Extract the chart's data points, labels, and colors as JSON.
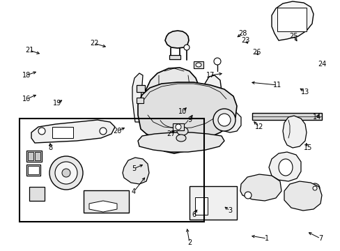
{
  "background_color": "#ffffff",
  "label_data": [
    [
      "1",
      383,
      18,
      358,
      22
    ],
    [
      "2",
      272,
      12,
      268,
      35
    ],
    [
      "3",
      330,
      58,
      320,
      65
    ],
    [
      "4",
      192,
      85,
      210,
      108
    ],
    [
      "5",
      192,
      118,
      208,
      125
    ],
    [
      "6",
      278,
      52,
      285,
      62
    ],
    [
      "7",
      460,
      18,
      440,
      28
    ],
    [
      "8",
      72,
      148,
      72,
      158
    ],
    [
      "9",
      272,
      188,
      278,
      198
    ],
    [
      "10",
      262,
      200,
      270,
      208
    ],
    [
      "11",
      398,
      238,
      358,
      242
    ],
    [
      "12",
      372,
      178,
      362,
      188
    ],
    [
      "13",
      438,
      228,
      428,
      235
    ],
    [
      "14",
      455,
      192,
      460,
      198
    ],
    [
      "15",
      442,
      148,
      438,
      158
    ],
    [
      "16",
      38,
      218,
      55,
      225
    ],
    [
      "17",
      302,
      252,
      322,
      255
    ],
    [
      "18",
      38,
      252,
      55,
      258
    ],
    [
      "19",
      82,
      212,
      92,
      218
    ],
    [
      "20",
      168,
      172,
      182,
      178
    ],
    [
      "21",
      42,
      288,
      60,
      282
    ],
    [
      "22",
      135,
      298,
      155,
      292
    ],
    [
      "23",
      352,
      302,
      358,
      295
    ],
    [
      "24",
      462,
      268,
      458,
      272
    ],
    [
      "25",
      422,
      308,
      428,
      298
    ],
    [
      "26",
      368,
      285,
      372,
      278
    ],
    [
      "27",
      245,
      168,
      252,
      175
    ],
    [
      "28",
      348,
      312,
      338,
      305
    ]
  ]
}
